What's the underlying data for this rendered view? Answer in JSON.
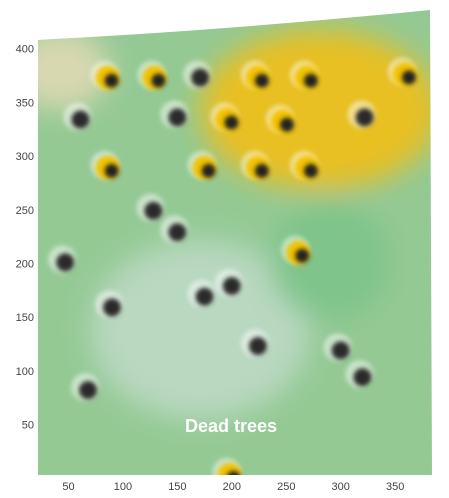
{
  "chart_data": {
    "type": "scatter",
    "annotation": "Dead trees",
    "xlim": [
      22,
      382
    ],
    "ylim": [
      4,
      411
    ],
    "xticks": [
      50,
      100,
      150,
      200,
      250,
      300,
      350
    ],
    "yticks": [
      50,
      100,
      150,
      200,
      250,
      300,
      350,
      400
    ],
    "background_color": "#94c994",
    "series": [
      {
        "color": "#f2c200",
        "x": [
          86,
          129,
          224,
          269,
          359,
          247,
          196,
          86,
          175,
          224,
          269,
          261,
          198
        ],
        "y": [
          374,
          374,
          374,
          374,
          377,
          333,
          335,
          290,
          290,
          290,
          290,
          211,
          4
        ]
      },
      {
        "color": "#2a2a2a",
        "x": [
          171,
          61,
          150,
          322,
          47,
          68,
          224,
          128,
          90,
          175,
          300,
          150,
          200,
          320
        ],
        "y": [
          374,
          335,
          337,
          337,
          202,
          83,
          124,
          250,
          160,
          170,
          120,
          230,
          180,
          95
        ]
      }
    ]
  }
}
